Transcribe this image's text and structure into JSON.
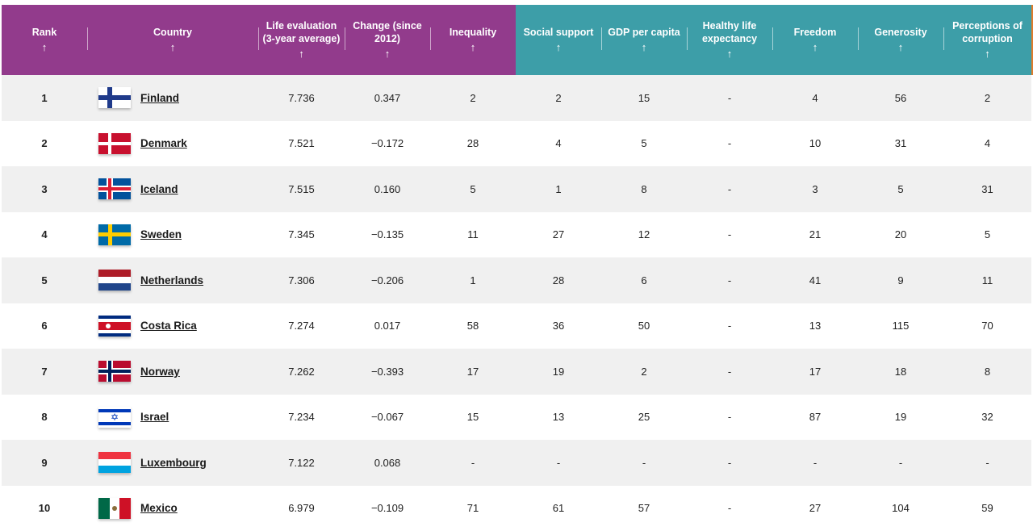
{
  "columns": [
    {
      "label": "Rank",
      "group": "purple"
    },
    {
      "label": "Country",
      "group": "purple"
    },
    {
      "label": "Life evaluation (3-year average)",
      "group": "purple"
    },
    {
      "label": "Change (since 2012)",
      "group": "purple"
    },
    {
      "label": "Inequality",
      "group": "purple"
    },
    {
      "label": "Social support",
      "group": "teal"
    },
    {
      "label": "GDP per capita",
      "group": "teal"
    },
    {
      "label": "Healthy life expectancy",
      "group": "teal"
    },
    {
      "label": "Freedom",
      "group": "teal"
    },
    {
      "label": "Generosity",
      "group": "teal"
    },
    {
      "label": "Perceptions of corruption",
      "group": "teal"
    }
  ],
  "sort_arrow": "↑",
  "colors": {
    "header_purple": "#923b8c",
    "header_teal": "#3d9ea8",
    "row_stripe": "#f0f0f0",
    "edge_accent": "#e07b2a"
  },
  "rows": [
    {
      "rank": "1",
      "country": "Finland",
      "flag": "finland-flag",
      "life": "7.736",
      "change": "0.347",
      "inequality": "2",
      "social": "2",
      "gdp": "15",
      "health": "-",
      "freedom": "4",
      "generosity": "56",
      "corruption": "2"
    },
    {
      "rank": "2",
      "country": "Denmark",
      "flag": "denmark-flag",
      "life": "7.521",
      "change": "−0.172",
      "inequality": "28",
      "social": "4",
      "gdp": "5",
      "health": "-",
      "freedom": "10",
      "generosity": "31",
      "corruption": "4"
    },
    {
      "rank": "3",
      "country": "Iceland",
      "flag": "iceland-flag",
      "life": "7.515",
      "change": "0.160",
      "inequality": "5",
      "social": "1",
      "gdp": "8",
      "health": "-",
      "freedom": "3",
      "generosity": "5",
      "corruption": "31"
    },
    {
      "rank": "4",
      "country": "Sweden",
      "flag": "sweden-flag",
      "life": "7.345",
      "change": "−0.135",
      "inequality": "11",
      "social": "27",
      "gdp": "12",
      "health": "-",
      "freedom": "21",
      "generosity": "20",
      "corruption": "5"
    },
    {
      "rank": "5",
      "country": "Netherlands",
      "flag": "netherlands-flag",
      "life": "7.306",
      "change": "−0.206",
      "inequality": "1",
      "social": "28",
      "gdp": "6",
      "health": "-",
      "freedom": "41",
      "generosity": "9",
      "corruption": "11"
    },
    {
      "rank": "6",
      "country": "Costa Rica",
      "flag": "costa-rica-flag",
      "life": "7.274",
      "change": "0.017",
      "inequality": "58",
      "social": "36",
      "gdp": "50",
      "health": "-",
      "freedom": "13",
      "generosity": "115",
      "corruption": "70"
    },
    {
      "rank": "7",
      "country": "Norway",
      "flag": "norway-flag",
      "life": "7.262",
      "change": "−0.393",
      "inequality": "17",
      "social": "19",
      "gdp": "2",
      "health": "-",
      "freedom": "17",
      "generosity": "18",
      "corruption": "8"
    },
    {
      "rank": "8",
      "country": "Israel",
      "flag": "israel-flag",
      "life": "7.234",
      "change": "−0.067",
      "inequality": "15",
      "social": "13",
      "gdp": "25",
      "health": "-",
      "freedom": "87",
      "generosity": "19",
      "corruption": "32"
    },
    {
      "rank": "9",
      "country": "Luxembourg",
      "flag": "luxembourg-flag",
      "life": "7.122",
      "change": "0.068",
      "inequality": "-",
      "social": "-",
      "gdp": "-",
      "health": "-",
      "freedom": "-",
      "generosity": "-",
      "corruption": "-"
    },
    {
      "rank": "10",
      "country": "Mexico",
      "flag": "mexico-flag",
      "life": "6.979",
      "change": "−0.109",
      "inequality": "71",
      "social": "61",
      "gdp": "57",
      "health": "-",
      "freedom": "27",
      "generosity": "104",
      "corruption": "59"
    }
  ]
}
